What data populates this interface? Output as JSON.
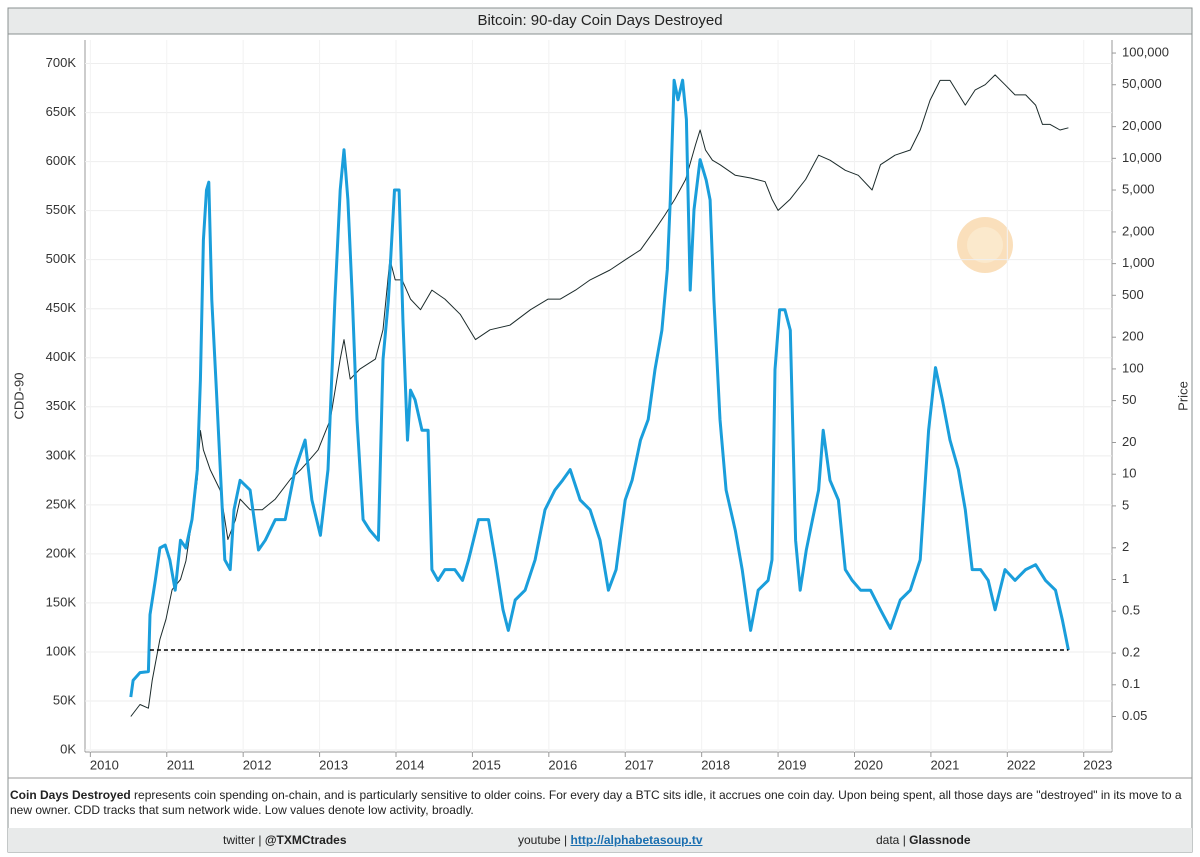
{
  "chart_data": {
    "type": "line",
    "title": "Bitcoin: 90-day Coin Days Destroyed",
    "y_label": "CDD-90",
    "y2_label": "Price",
    "xlim": [
      2009.93,
      2023.37
    ],
    "xticks": [
      2010,
      2011,
      2012,
      2013,
      2014,
      2015,
      2016,
      2017,
      2018,
      2019,
      2020,
      2021,
      2022,
      2023
    ],
    "ylim": [
      -2000,
      724000
    ],
    "yticks": [
      {
        "value": 0,
        "label": "0K"
      },
      {
        "value": 50000,
        "label": "50K"
      },
      {
        "value": 100000,
        "label": "100K"
      },
      {
        "value": 150000,
        "label": "150K"
      },
      {
        "value": 200000,
        "label": "200K"
      },
      {
        "value": 250000,
        "label": "250K"
      },
      {
        "value": 300000,
        "label": "300K"
      },
      {
        "value": 350000,
        "label": "350K"
      },
      {
        "value": 400000,
        "label": "400K"
      },
      {
        "value": 450000,
        "label": "450K"
      },
      {
        "value": 500000,
        "label": "500K"
      },
      {
        "value": 550000,
        "label": "550K"
      },
      {
        "value": 600000,
        "label": "600K"
      },
      {
        "value": 650000,
        "label": "650K"
      },
      {
        "value": 700000,
        "label": "700K"
      }
    ],
    "y2lim": [
      0.023,
      133000
    ],
    "y2_log": true,
    "y2ticks": [
      0.05,
      0.1,
      0.2,
      0.5,
      1,
      2,
      5,
      10,
      20,
      50,
      100,
      200,
      500,
      {
        "value": 1000,
        "label": "1,000"
      },
      {
        "value": 2000,
        "label": "2,000"
      },
      {
        "value": 5000,
        "label": "5,000"
      },
      {
        "value": 10000,
        "label": "10,000"
      },
      {
        "value": 20000,
        "label": "20,000"
      },
      {
        "value": 50000,
        "label": "50,000"
      },
      {
        "value": 100000,
        "label": "100,000"
      }
    ],
    "grid": true,
    "series": [
      {
        "color": "#1a9edb",
        "x": [
          2010.53,
          2010.56,
          2010.65,
          2010.76,
          2010.78,
          2010.85,
          2010.91,
          2010.98,
          2011.04,
          2011.11,
          2011.18,
          2011.25,
          2011.33,
          2011.4,
          2011.44,
          2011.48,
          2011.52,
          2011.55,
          2011.59,
          2011.65,
          2011.7,
          2011.76,
          2011.83,
          2011.88,
          2011.96,
          2012.09,
          2012.2,
          2012.29,
          2012.42,
          2012.55,
          2012.68,
          2012.81,
          2012.9,
          2013.01,
          2013.11,
          2013.2,
          2013.27,
          2013.32,
          2013.37,
          2013.43,
          2013.49,
          2013.57,
          2013.66,
          2013.77,
          2013.83,
          2013.9,
          2013.98,
          2014.04,
          2014.09,
          2014.15,
          2014.19,
          2014.25,
          2014.34,
          2014.42,
          2014.47,
          2014.55,
          2014.64,
          2014.77,
          2014.87,
          2014.95,
          2015.08,
          2015.21,
          2015.3,
          2015.4,
          2015.47,
          2015.56,
          2015.69,
          2015.82,
          2015.95,
          2016.08,
          2016.18,
          2016.28,
          2016.41,
          2016.54,
          2016.67,
          2016.78,
          2016.88,
          2017.0,
          2017.09,
          2017.2,
          2017.3,
          2017.39,
          2017.48,
          2017.55,
          2017.59,
          2017.64,
          2017.69,
          2017.75,
          2017.8,
          2017.85,
          2017.9,
          2017.98,
          2018.06,
          2018.11,
          2018.16,
          2018.24,
          2018.32,
          2018.44,
          2018.53,
          2018.64,
          2018.74,
          2018.87,
          2018.92,
          2018.96,
          2019.02,
          2019.09,
          2019.16,
          2019.23,
          2019.29,
          2019.37,
          2019.45,
          2019.53,
          2019.59,
          2019.68,
          2019.79,
          2019.88,
          2019.97,
          2020.08,
          2020.21,
          2020.34,
          2020.47,
          2020.6,
          2020.73,
          2020.86,
          2020.97,
          2021.06,
          2021.15,
          2021.25,
          2021.36,
          2021.45,
          2021.54,
          2021.65,
          2021.75,
          2021.84,
          2021.97,
          2022.1,
          2022.24,
          2022.37,
          2022.5,
          2022.63,
          2022.72,
          2022.8
        ],
        "values": [
          54000,
          71000,
          79000,
          80000,
          138000,
          173000,
          206000,
          209000,
          194000,
          163000,
          214000,
          206000,
          235000,
          286000,
          377000,
          520000,
          571000,
          579000,
          459000,
          367000,
          286000,
          194000,
          184000,
          245000,
          275000,
          265000,
          204000,
          214000,
          235000,
          235000,
          286000,
          316000,
          255000,
          219000,
          286000,
          459000,
          571000,
          612000,
          561000,
          459000,
          337000,
          235000,
          224000,
          214000,
          398000,
          459000,
          571000,
          571000,
          439000,
          316000,
          367000,
          357000,
          326000,
          326000,
          184000,
          173000,
          184000,
          184000,
          173000,
          194000,
          235000,
          235000,
          194000,
          143000,
          122000,
          153000,
          163000,
          194000,
          245000,
          265000,
          275000,
          286000,
          255000,
          245000,
          214000,
          163000,
          184000,
          255000,
          275000,
          316000,
          337000,
          388000,
          428000,
          490000,
          561000,
          683000,
          663000,
          683000,
          643000,
          469000,
          551000,
          602000,
          581000,
          561000,
          459000,
          337000,
          265000,
          224000,
          184000,
          122000,
          163000,
          173000,
          194000,
          388000,
          449000,
          449000,
          428000,
          214000,
          163000,
          204000,
          235000,
          265000,
          326000,
          275000,
          255000,
          184000,
          173000,
          163000,
          163000,
          143000,
          124000,
          153000,
          163000,
          194000,
          326000,
          390000,
          357000,
          316000,
          286000,
          245000,
          184000,
          184000,
          173000,
          143000,
          184000,
          173000,
          184000,
          189000,
          173000,
          163000,
          133000,
          102000
        ]
      },
      {
        "color": "#1c2b2b",
        "axis": "y2",
        "x": [
          2010.53,
          2010.65,
          2010.76,
          2010.81,
          2010.91,
          2010.99,
          2011.07,
          2011.18,
          2011.25,
          2011.33,
          2011.4,
          2011.44,
          2011.48,
          2011.57,
          2011.7,
          2011.8,
          2011.9,
          2011.96,
          2012.09,
          2012.25,
          2012.42,
          2012.62,
          2012.75,
          2012.88,
          2012.98,
          2013.14,
          2013.27,
          2013.32,
          2013.4,
          2013.53,
          2013.73,
          2013.83,
          2013.92,
          2013.99,
          2014.08,
          2014.19,
          2014.32,
          2014.47,
          2014.64,
          2014.84,
          2015.04,
          2015.23,
          2015.49,
          2015.76,
          2015.99,
          2016.15,
          2016.35,
          2016.54,
          2016.8,
          2017.01,
          2017.2,
          2017.39,
          2017.52,
          2017.65,
          2017.79,
          2017.92,
          2017.98,
          2018.05,
          2018.14,
          2018.24,
          2018.44,
          2018.64,
          2018.83,
          2018.92,
          2019.0,
          2019.16,
          2019.36,
          2019.53,
          2019.68,
          2019.88,
          2020.05,
          2020.23,
          2020.34,
          2020.53,
          2020.73,
          2020.86,
          2020.99,
          2021.12,
          2021.25,
          2021.45,
          2021.58,
          2021.71,
          2021.84,
          2021.97,
          2022.1,
          2022.24,
          2022.37,
          2022.46,
          2022.56,
          2022.69,
          2022.8
        ],
        "values": [
          0.05,
          0.065,
          0.06,
          0.11,
          0.27,
          0.42,
          0.8,
          1,
          1.5,
          3.7,
          9,
          26,
          17,
          11,
          7,
          2.4,
          3.7,
          5.8,
          4.6,
          4.6,
          5.8,
          9,
          11,
          14,
          17,
          33,
          124,
          190,
          80,
          100,
          124,
          235,
          1100,
          700,
          700,
          460,
          365,
          560,
          460,
          330,
          190,
          235,
          260,
          365,
          460,
          460,
          560,
          700,
          870,
          1100,
          1350,
          2100,
          2900,
          4100,
          6300,
          13400,
          18600,
          12000,
          9600,
          8700,
          6900,
          6500,
          6000,
          4100,
          3200,
          4100,
          6300,
          10700,
          9600,
          7700,
          6900,
          5000,
          8700,
          10700,
          12000,
          18600,
          35700,
          55000,
          55000,
          32000,
          44700,
          50000,
          62000,
          50000,
          40000,
          40000,
          32000,
          21000,
          21000,
          18600,
          19500
        ]
      }
    ],
    "reference_lines": [
      {
        "y": 102000,
        "x": [
          2010.78,
          2022.8
        ],
        "color": "#000000"
      }
    ]
  },
  "caption": {
    "term": "Coin Days Destroyed",
    "text": " represents coin spending on-chain, and is particularly sensitive to older coins. For every day a BTC sits idle, it accrues one coin day. Upon being spent, all those days are \"destroyed\" in its move to a new owner. CDD tracks that sum network wide. Low values denote low activity, broadly."
  },
  "footer": {
    "twitter_label": "twitter |",
    "twitter": "@TXMCtrades",
    "youtube_label": "youtube |",
    "youtube": "http://alphabetasoup.tv",
    "data_label": "data |",
    "data": "Glassnode"
  }
}
